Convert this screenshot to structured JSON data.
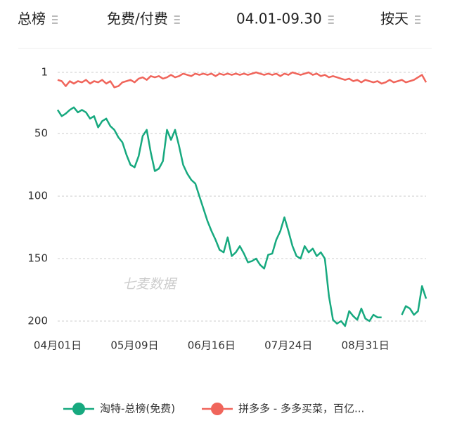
{
  "filters": [
    {
      "label": "总榜"
    },
    {
      "label": "免费/付费"
    },
    {
      "label": "04.01-09.30"
    },
    {
      "label": "按天"
    }
  ],
  "chart_data": {
    "type": "line",
    "annotation": "七麦数据",
    "categories": [
      "04月01日",
      null,
      null,
      null,
      null,
      null,
      null,
      null,
      null,
      null,
      null,
      null,
      null,
      null,
      null,
      null,
      null,
      null,
      null,
      "05月09日",
      null,
      null,
      null,
      null,
      null,
      null,
      null,
      null,
      null,
      null,
      null,
      null,
      null,
      null,
      null,
      null,
      null,
      null,
      "06月16日",
      null,
      null,
      null,
      null,
      null,
      null,
      null,
      null,
      null,
      null,
      null,
      null,
      null,
      null,
      null,
      null,
      null,
      null,
      "07月24日",
      null,
      null,
      null,
      null,
      null,
      null,
      null,
      null,
      null,
      null,
      null,
      null,
      null,
      null,
      null,
      null,
      null,
      null,
      "08月31日",
      null,
      null,
      null,
      null,
      null,
      null,
      null,
      null,
      null,
      null,
      null,
      null,
      null,
      null,
      null
    ],
    "ylim": [
      1,
      200
    ],
    "y_reversed": true,
    "yticks": [
      1,
      50,
      100,
      150,
      200
    ],
    "grid": true,
    "legend": "bottom",
    "series": [
      {
        "name": "淘特-总榜(免费)",
        "color": "#17a97f",
        "values": [
          31,
          36,
          34,
          31,
          29,
          33,
          31,
          33,
          38,
          36,
          45,
          40,
          38,
          44,
          47,
          53,
          57,
          67,
          75,
          77,
          68,
          52,
          47,
          65,
          80,
          78,
          72,
          47,
          55,
          47,
          60,
          75,
          82,
          87,
          90,
          100,
          110,
          120,
          128,
          135,
          143,
          145,
          133,
          148,
          145,
          140,
          146,
          153,
          152,
          150,
          155,
          158,
          147,
          146,
          135,
          128,
          117,
          128,
          140,
          148,
          150,
          140,
          145,
          142,
          148,
          145,
          150,
          180,
          199,
          202,
          200,
          204,
          192,
          196,
          199,
          190,
          198,
          200,
          195,
          197,
          197,
          null,
          null,
          null,
          null,
          195,
          188,
          190,
          195,
          192,
          172,
          182
        ]
      },
      {
        "name": "拼多多 - 多多买菜，百亿...",
        "color": "#f0655b",
        "values": [
          7,
          8,
          12,
          8,
          10,
          8,
          9,
          7,
          10,
          8,
          9,
          7,
          10,
          8,
          13,
          12,
          9,
          8,
          7,
          9,
          6,
          5,
          7,
          4,
          5,
          4,
          6,
          5,
          3,
          5,
          4,
          2,
          3,
          4,
          2,
          3,
          2,
          3,
          2,
          4,
          2,
          3,
          2,
          3,
          2,
          3,
          2,
          3,
          2,
          1,
          2,
          3,
          2,
          3,
          2,
          4,
          2,
          3,
          1,
          2,
          3,
          2,
          1,
          3,
          2,
          4,
          3,
          5,
          4,
          5,
          6,
          7,
          6,
          8,
          7,
          9,
          7,
          8,
          9,
          8,
          10,
          9,
          7,
          9,
          8,
          7,
          9,
          8,
          7,
          5,
          3,
          9
        ]
      }
    ]
  }
}
